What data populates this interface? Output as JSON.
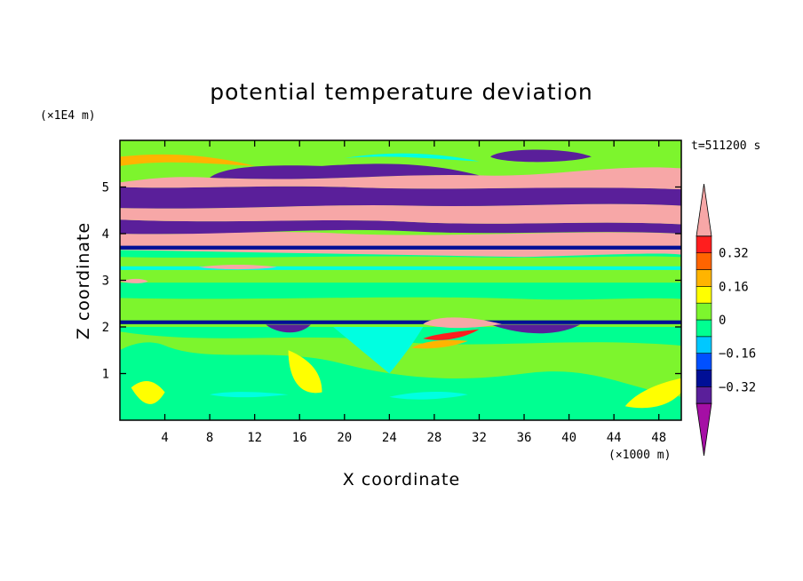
{
  "chart_data": {
    "type": "heatmap",
    "title": "potential temperature deviation",
    "xlabel": "X coordinate",
    "ylabel": "Z coordinate",
    "x_unit_label": "(×1000 m)",
    "y_unit_label": "(×1E4 m)",
    "time_label": "t=511200 s",
    "xlim": [
      0,
      50
    ],
    "ylim": [
      0,
      6
    ],
    "x_ticks": [
      "4",
      "8",
      "12",
      "16",
      "20",
      "24",
      "28",
      "32",
      "36",
      "40",
      "44",
      "48"
    ],
    "x_tick_values": [
      4,
      8,
      12,
      16,
      20,
      24,
      28,
      32,
      36,
      40,
      44,
      48
    ],
    "y_ticks": [
      "1",
      "2",
      "3",
      "4",
      "5"
    ],
    "y_tick_values": [
      1,
      2,
      3,
      4,
      5
    ],
    "colorbar": {
      "levels": [
        -0.48,
        -0.4,
        -0.32,
        -0.24,
        -0.16,
        -0.08,
        0,
        0.08,
        0.16,
        0.24,
        0.32,
        0.4,
        0.48
      ],
      "labels": [
        "0.32",
        "0.16",
        "0",
        "−0.16",
        "−0.32"
      ],
      "label_values": [
        0.32,
        0.16,
        0,
        -0.16,
        -0.32
      ],
      "colors": [
        "#a50fa5",
        "#5a1f9a",
        "#000f96",
        "#0050ff",
        "#00c8ff",
        "#00ff91",
        "#7df52d",
        "#ffff00",
        "#ffb400",
        "#ff6400",
        "#ff1e1e",
        "#f7a7a7"
      ],
      "extend": "both"
    }
  }
}
